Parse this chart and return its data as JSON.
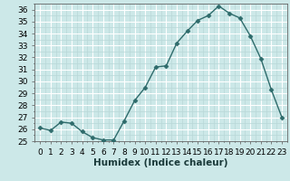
{
  "x": [
    0,
    1,
    2,
    3,
    4,
    5,
    6,
    7,
    8,
    9,
    10,
    11,
    12,
    13,
    14,
    15,
    16,
    17,
    18,
    19,
    20,
    21,
    22,
    23
  ],
  "y": [
    26.1,
    25.9,
    26.6,
    26.5,
    25.8,
    25.3,
    25.1,
    25.1,
    26.7,
    28.4,
    29.5,
    31.2,
    31.3,
    33.2,
    34.2,
    35.1,
    35.5,
    36.3,
    35.7,
    35.3,
    33.8,
    31.9,
    29.3,
    27.0
  ],
  "line_color": "#2e6b6b",
  "marker": "D",
  "marker_size": 2.5,
  "bg_color": "#cce8e8",
  "grid_major_color": "#ffffff",
  "grid_minor_color": "#b8d8d8",
  "xlabel": "Humidex (Indice chaleur)",
  "xlim": [
    -0.5,
    23.5
  ],
  "ylim": [
    25,
    36.5
  ],
  "yticks": [
    25,
    26,
    27,
    28,
    29,
    30,
    31,
    32,
    33,
    34,
    35,
    36
  ],
  "xticks": [
    0,
    1,
    2,
    3,
    4,
    5,
    6,
    7,
    8,
    9,
    10,
    11,
    12,
    13,
    14,
    15,
    16,
    17,
    18,
    19,
    20,
    21,
    22,
    23
  ],
  "xlabel_fontsize": 7.5,
  "tick_fontsize": 6.5
}
